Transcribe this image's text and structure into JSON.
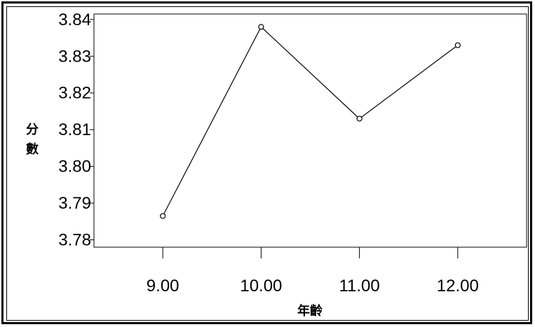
{
  "chart_data": {
    "type": "line",
    "xlabel": "年齡",
    "ylabel": "分數",
    "x_ticks": [
      "9.00",
      "10.00",
      "11.00",
      "12.00"
    ],
    "y_ticks": [
      "3.78",
      "3.79",
      "3.80",
      "3.81",
      "3.82",
      "3.83",
      "3.84"
    ],
    "x": [
      9,
      10,
      11,
      12
    ],
    "y": [
      3.7865,
      3.838,
      3.813,
      3.833
    ],
    "xlim": [
      8.3,
      12.7
    ],
    "ylim": [
      3.778,
      3.8415
    ],
    "grid": false,
    "marker": "open-circle",
    "line_color": "#000000"
  }
}
